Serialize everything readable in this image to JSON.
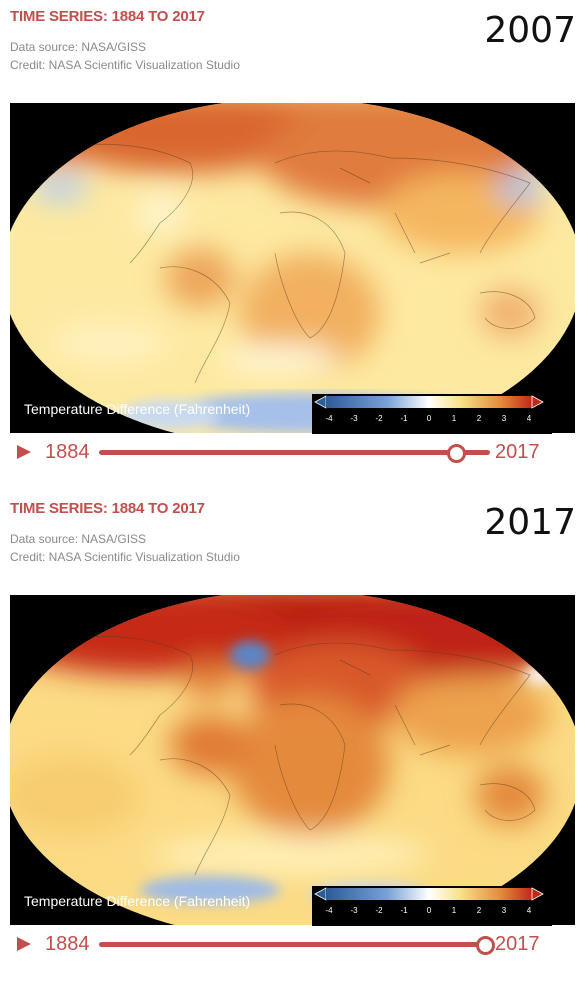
{
  "panels": [
    {
      "title": "TIME SERIES: 1884 TO 2017",
      "source": "Data source: NASA/GISS",
      "credit": "Credit: NASA Scientific Visualization Studio",
      "year": "2007",
      "colorbar_label": "Temperature Difference (Fahrenheit)",
      "colorbar_ticks": [
        "-4",
        "-3",
        "-2",
        "-1",
        "0",
        "1",
        "2",
        "3",
        "4"
      ],
      "start_year": "1884",
      "end_year": "2017",
      "slider_value": 2007
    },
    {
      "title": "TIME SERIES: 1884 TO 2017",
      "source": "Data source: NASA/GISS",
      "credit": "Credit: NASA Scientific Visualization Studio",
      "year": "2017",
      "colorbar_label": "Temperature Difference (Fahrenheit)",
      "colorbar_ticks": [
        "-4",
        "-3",
        "-2",
        "-1",
        "0",
        "1",
        "2",
        "3",
        "4"
      ],
      "start_year": "1884",
      "end_year": "2017",
      "slider_value": 2017
    }
  ],
  "colors": {
    "accent": "#c0504d",
    "map_background": "#000000",
    "warm_low": "#fff4b0",
    "warm_mid": "#f3a24a",
    "warm_high": "#c21f12",
    "cool": "#4d7fc4"
  },
  "icons": {
    "play": "play-icon"
  }
}
